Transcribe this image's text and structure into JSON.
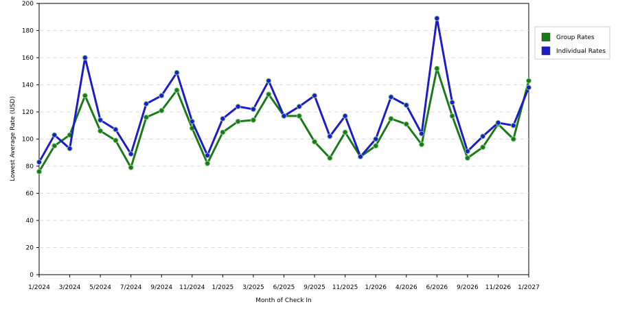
{
  "chart_data": {
    "type": "line",
    "x_label": "Month of Check In",
    "y_label": "Lowest Average Rate (USD)",
    "categories": [
      "1/2024",
      null,
      "3/2024",
      null,
      "5/2024",
      null,
      "7/2024",
      null,
      "9/2024",
      null,
      "11/2024",
      null,
      "1/2025",
      null,
      "3/2025",
      null,
      "6/2025",
      null,
      "9/2025",
      null,
      "11/2025",
      null,
      "1/2026",
      null,
      "4/2026",
      null,
      "6/2026",
      null,
      "9/2026",
      null,
      "11/2026",
      null,
      "1/2027"
    ],
    "series": [
      {
        "name": "Group Rates",
        "color": "#1a7a1a",
        "values": [
          76,
          95,
          103,
          132,
          106,
          99,
          79,
          116,
          121,
          136,
          108,
          82,
          105,
          113,
          114,
          133,
          117,
          117,
          98,
          86,
          105,
          87,
          95,
          115,
          111,
          96,
          152,
          117,
          86,
          94,
          111,
          100,
          143
        ]
      },
      {
        "name": "Individual Rates",
        "color": "#1c1cc8",
        "values": [
          83,
          103,
          93,
          160,
          114,
          107,
          89,
          126,
          132,
          149,
          113,
          88,
          115,
          124,
          122,
          143,
          117,
          124,
          132,
          102,
          117,
          87,
          100,
          131,
          125,
          104,
          189,
          127,
          91,
          102,
          112,
          110,
          138
        ]
      }
    ],
    "ylim": [
      0,
      200
    ],
    "yticks": [
      0,
      20,
      40,
      60,
      80,
      100,
      120,
      140,
      160,
      180,
      200
    ],
    "grid": true
  }
}
